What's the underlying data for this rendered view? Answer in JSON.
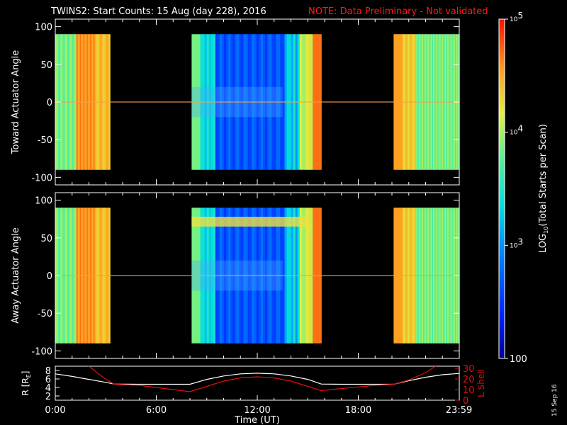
{
  "title": "TWINS2: Start Counts: 15 Aug (day 228), 2016",
  "note": "NOTE: Data Preliminary - Not validated",
  "footer_date": "15 Sep 16",
  "colors": {
    "note": "#ff1a1a",
    "background": "#000000",
    "axis": "#ffffff",
    "shell_line": "#e01010",
    "radius_line": "#ffffff"
  },
  "chart_data": [
    {
      "type": "heatmap",
      "name": "toward",
      "ylabel": "Toward Actuator Angle",
      "ylim": [
        -110,
        110
      ],
      "yticks": [
        "100",
        "50",
        "0",
        "-50",
        "-100"
      ],
      "ytick_values": [
        100,
        50,
        0,
        -50,
        -100
      ],
      "angle_range": [
        -90,
        90
      ],
      "data_intervals_hours": [
        [
          0.0,
          3.25
        ],
        [
          8.1,
          15.8
        ],
        [
          20.1,
          24.0
        ]
      ],
      "colorscale": "rainbow",
      "zrange_log10": [
        2,
        5
      ]
    },
    {
      "type": "heatmap",
      "name": "away",
      "ylabel": "Away Actuator Angle",
      "ylim": [
        -110,
        110
      ],
      "yticks": [
        "100",
        "50",
        "0",
        "-50",
        "-100"
      ],
      "ytick_values": [
        100,
        50,
        0,
        -50,
        -100
      ],
      "angle_range": [
        -90,
        90
      ],
      "data_intervals_hours": [
        [
          0.0,
          3.25
        ],
        [
          8.1,
          15.8
        ],
        [
          20.1,
          24.0
        ]
      ],
      "colorscale": "rainbow",
      "zrange_log10": [
        2,
        5
      ]
    },
    {
      "type": "line",
      "name": "orbit",
      "ylabel_left": "R [R",
      "ylabel_left_sub": "E",
      "ylabel_left_close": "]",
      "ylabel_right": "L Shell",
      "left_ticks": [
        "8",
        "6",
        "4",
        "2"
      ],
      "left_tick_values": [
        8,
        6,
        4,
        2
      ],
      "left_ylim": [
        1,
        9
      ],
      "right_ticks": [
        "30",
        "20",
        "10",
        "0"
      ],
      "right_tick_values": [
        30,
        20,
        10,
        0
      ],
      "right_ylim": [
        0,
        32
      ],
      "xlabel": "Time (UT)",
      "xticks": [
        "0:00",
        "6:00",
        "12:00",
        "18:00",
        "23:59"
      ],
      "xtick_values": [
        0,
        6,
        12,
        18,
        23.98
      ],
      "xlim": [
        0,
        24
      ],
      "series": [
        {
          "name": "R",
          "x": [
            0,
            1,
            2,
            3,
            3.5,
            5,
            6.5,
            8,
            9,
            10,
            11,
            12,
            13,
            14,
            15,
            15.8,
            17,
            19,
            20.1,
            21,
            22,
            23,
            24
          ],
          "y": [
            7.2,
            6.6,
            5.9,
            5.2,
            4.8,
            4.75,
            4.75,
            4.75,
            5.9,
            6.7,
            7.2,
            7.35,
            7.2,
            6.7,
            5.9,
            4.8,
            4.75,
            4.75,
            4.75,
            5.6,
            6.4,
            7.0,
            7.3
          ]
        },
        {
          "name": "L Shell",
          "x": [
            2.0,
            2.8,
            3.5,
            5,
            6.5,
            8,
            9,
            10,
            11,
            12,
            13,
            14,
            15,
            15.8,
            17,
            19,
            20.1,
            21,
            22,
            22.6
          ],
          "y": [
            32,
            22,
            15,
            14,
            11,
            8,
            13,
            18,
            21,
            22,
            21,
            18,
            13,
            9,
            11,
            14,
            15,
            19,
            26,
            32
          ]
        }
      ]
    },
    {
      "type": "colorbar",
      "name": "colorbar",
      "ylabel": "LOG10(Total Starts per Scan)",
      "label_main": "LOG",
      "label_sub": "10",
      "label_rest": "(Total Starts per Scan)",
      "ticks": [
        {
          "base": "10",
          "exp": "5",
          "value": 5
        },
        {
          "base": "10",
          "exp": "4",
          "value": 4
        },
        {
          "base": "10",
          "exp": "3",
          "value": 3
        },
        {
          "base": "100",
          "exp": "",
          "value": 2
        }
      ],
      "zrange_log10": [
        2,
        5
      ]
    }
  ]
}
